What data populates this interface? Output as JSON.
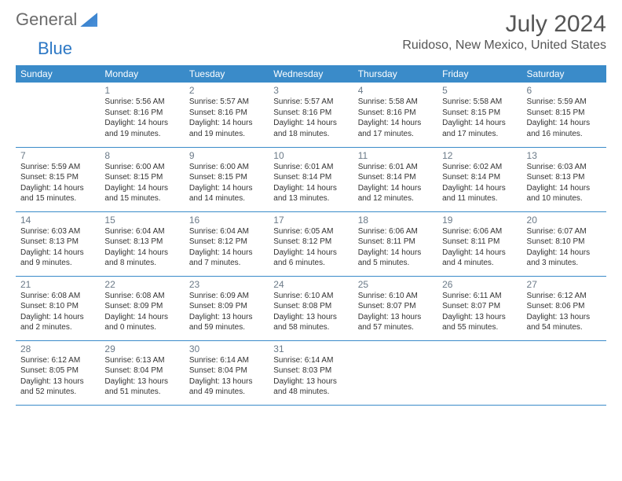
{
  "brand": {
    "part1": "General",
    "part2": "Blue"
  },
  "title": "July 2024",
  "location": "Ruidoso, New Mexico, United States",
  "colors": {
    "header_bg": "#3a8bc9",
    "header_text": "#ffffff",
    "border": "#3a8bc9",
    "daynum": "#6b7a88",
    "body_text": "#333333",
    "title_text": "#555555"
  },
  "weekdays": [
    "Sunday",
    "Monday",
    "Tuesday",
    "Wednesday",
    "Thursday",
    "Friday",
    "Saturday"
  ],
  "weeks": [
    [
      null,
      {
        "n": "1",
        "sr": "Sunrise: 5:56 AM",
        "ss": "Sunset: 8:16 PM",
        "dl": "Daylight: 14 hours and 19 minutes."
      },
      {
        "n": "2",
        "sr": "Sunrise: 5:57 AM",
        "ss": "Sunset: 8:16 PM",
        "dl": "Daylight: 14 hours and 19 minutes."
      },
      {
        "n": "3",
        "sr": "Sunrise: 5:57 AM",
        "ss": "Sunset: 8:16 PM",
        "dl": "Daylight: 14 hours and 18 minutes."
      },
      {
        "n": "4",
        "sr": "Sunrise: 5:58 AM",
        "ss": "Sunset: 8:16 PM",
        "dl": "Daylight: 14 hours and 17 minutes."
      },
      {
        "n": "5",
        "sr": "Sunrise: 5:58 AM",
        "ss": "Sunset: 8:15 PM",
        "dl": "Daylight: 14 hours and 17 minutes."
      },
      {
        "n": "6",
        "sr": "Sunrise: 5:59 AM",
        "ss": "Sunset: 8:15 PM",
        "dl": "Daylight: 14 hours and 16 minutes."
      }
    ],
    [
      {
        "n": "7",
        "sr": "Sunrise: 5:59 AM",
        "ss": "Sunset: 8:15 PM",
        "dl": "Daylight: 14 hours and 15 minutes."
      },
      {
        "n": "8",
        "sr": "Sunrise: 6:00 AM",
        "ss": "Sunset: 8:15 PM",
        "dl": "Daylight: 14 hours and 15 minutes."
      },
      {
        "n": "9",
        "sr": "Sunrise: 6:00 AM",
        "ss": "Sunset: 8:15 PM",
        "dl": "Daylight: 14 hours and 14 minutes."
      },
      {
        "n": "10",
        "sr": "Sunrise: 6:01 AM",
        "ss": "Sunset: 8:14 PM",
        "dl": "Daylight: 14 hours and 13 minutes."
      },
      {
        "n": "11",
        "sr": "Sunrise: 6:01 AM",
        "ss": "Sunset: 8:14 PM",
        "dl": "Daylight: 14 hours and 12 minutes."
      },
      {
        "n": "12",
        "sr": "Sunrise: 6:02 AM",
        "ss": "Sunset: 8:14 PM",
        "dl": "Daylight: 14 hours and 11 minutes."
      },
      {
        "n": "13",
        "sr": "Sunrise: 6:03 AM",
        "ss": "Sunset: 8:13 PM",
        "dl": "Daylight: 14 hours and 10 minutes."
      }
    ],
    [
      {
        "n": "14",
        "sr": "Sunrise: 6:03 AM",
        "ss": "Sunset: 8:13 PM",
        "dl": "Daylight: 14 hours and 9 minutes."
      },
      {
        "n": "15",
        "sr": "Sunrise: 6:04 AM",
        "ss": "Sunset: 8:13 PM",
        "dl": "Daylight: 14 hours and 8 minutes."
      },
      {
        "n": "16",
        "sr": "Sunrise: 6:04 AM",
        "ss": "Sunset: 8:12 PM",
        "dl": "Daylight: 14 hours and 7 minutes."
      },
      {
        "n": "17",
        "sr": "Sunrise: 6:05 AM",
        "ss": "Sunset: 8:12 PM",
        "dl": "Daylight: 14 hours and 6 minutes."
      },
      {
        "n": "18",
        "sr": "Sunrise: 6:06 AM",
        "ss": "Sunset: 8:11 PM",
        "dl": "Daylight: 14 hours and 5 minutes."
      },
      {
        "n": "19",
        "sr": "Sunrise: 6:06 AM",
        "ss": "Sunset: 8:11 PM",
        "dl": "Daylight: 14 hours and 4 minutes."
      },
      {
        "n": "20",
        "sr": "Sunrise: 6:07 AM",
        "ss": "Sunset: 8:10 PM",
        "dl": "Daylight: 14 hours and 3 minutes."
      }
    ],
    [
      {
        "n": "21",
        "sr": "Sunrise: 6:08 AM",
        "ss": "Sunset: 8:10 PM",
        "dl": "Daylight: 14 hours and 2 minutes."
      },
      {
        "n": "22",
        "sr": "Sunrise: 6:08 AM",
        "ss": "Sunset: 8:09 PM",
        "dl": "Daylight: 14 hours and 0 minutes."
      },
      {
        "n": "23",
        "sr": "Sunrise: 6:09 AM",
        "ss": "Sunset: 8:09 PM",
        "dl": "Daylight: 13 hours and 59 minutes."
      },
      {
        "n": "24",
        "sr": "Sunrise: 6:10 AM",
        "ss": "Sunset: 8:08 PM",
        "dl": "Daylight: 13 hours and 58 minutes."
      },
      {
        "n": "25",
        "sr": "Sunrise: 6:10 AM",
        "ss": "Sunset: 8:07 PM",
        "dl": "Daylight: 13 hours and 57 minutes."
      },
      {
        "n": "26",
        "sr": "Sunrise: 6:11 AM",
        "ss": "Sunset: 8:07 PM",
        "dl": "Daylight: 13 hours and 55 minutes."
      },
      {
        "n": "27",
        "sr": "Sunrise: 6:12 AM",
        "ss": "Sunset: 8:06 PM",
        "dl": "Daylight: 13 hours and 54 minutes."
      }
    ],
    [
      {
        "n": "28",
        "sr": "Sunrise: 6:12 AM",
        "ss": "Sunset: 8:05 PM",
        "dl": "Daylight: 13 hours and 52 minutes."
      },
      {
        "n": "29",
        "sr": "Sunrise: 6:13 AM",
        "ss": "Sunset: 8:04 PM",
        "dl": "Daylight: 13 hours and 51 minutes."
      },
      {
        "n": "30",
        "sr": "Sunrise: 6:14 AM",
        "ss": "Sunset: 8:04 PM",
        "dl": "Daylight: 13 hours and 49 minutes."
      },
      {
        "n": "31",
        "sr": "Sunrise: 6:14 AM",
        "ss": "Sunset: 8:03 PM",
        "dl": "Daylight: 13 hours and 48 minutes."
      },
      null,
      null,
      null
    ]
  ]
}
